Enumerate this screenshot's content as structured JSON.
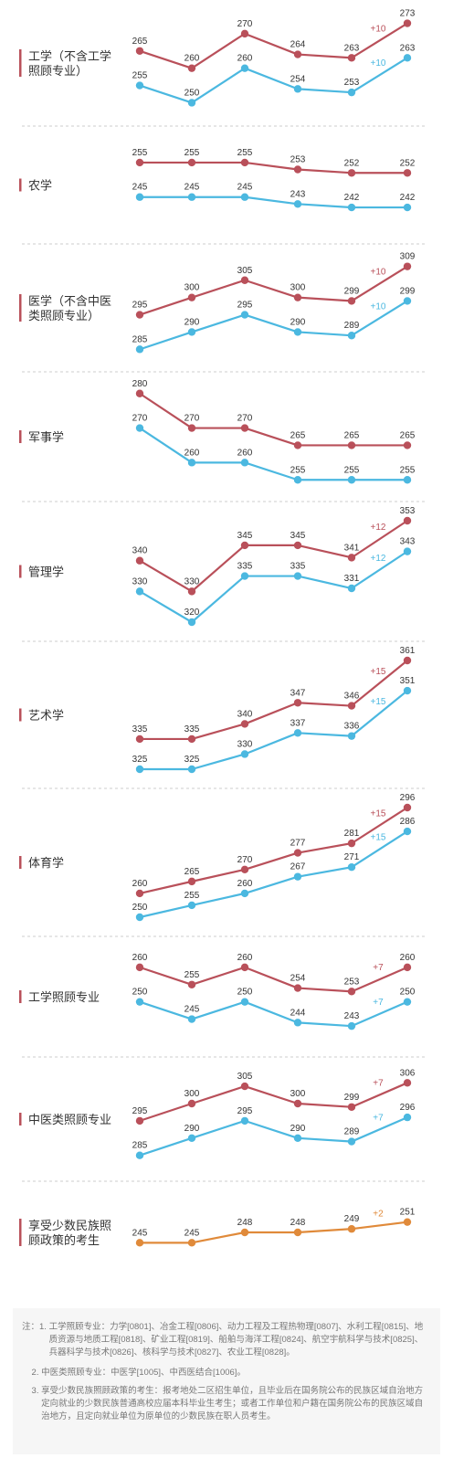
{
  "colors": {
    "red": "#b9505a",
    "blue": "#4bb8e0",
    "orange": "#e08a3a",
    "divider": "#cccccc",
    "label_bar": "#b9505a"
  },
  "x_years": [
    "",
    "",
    "",
    "",
    "",
    ""
  ],
  "chart_data": [
    {
      "type": "line",
      "label": "工学（不含工学\n照顾专业）",
      "series": [
        {
          "values": [
            265,
            260,
            270,
            264,
            263,
            273
          ],
          "color": "red"
        },
        {
          "values": [
            255,
            250,
            260,
            254,
            253,
            263
          ],
          "color": "blue"
        }
      ],
      "deltas": [
        "+10",
        "+10"
      ]
    },
    {
      "type": "line",
      "label": "农学",
      "series": [
        {
          "values": [
            255,
            255,
            255,
            253,
            252,
            252
          ],
          "color": "red"
        },
        {
          "values": [
            245,
            245,
            245,
            243,
            242,
            242
          ],
          "color": "blue"
        }
      ],
      "deltas": [
        "",
        ""
      ]
    },
    {
      "type": "line",
      "label": "医学（不含中医\n类照顾专业）",
      "series": [
        {
          "values": [
            295,
            300,
            305,
            300,
            299,
            309
          ],
          "color": "red"
        },
        {
          "values": [
            285,
            290,
            295,
            290,
            289,
            299
          ],
          "color": "blue"
        }
      ],
      "deltas": [
        "+10",
        "+10"
      ]
    },
    {
      "type": "line",
      "label": "军事学",
      "series": [
        {
          "values": [
            280,
            270,
            270,
            265,
            265,
            265
          ],
          "color": "red"
        },
        {
          "values": [
            270,
            260,
            260,
            255,
            255,
            255
          ],
          "color": "blue"
        }
      ],
      "deltas": [
        "",
        ""
      ]
    },
    {
      "type": "line",
      "label": "管理学",
      "series": [
        {
          "values": [
            340,
            330,
            345,
            345,
            341,
            353
          ],
          "color": "red"
        },
        {
          "values": [
            330,
            320,
            335,
            335,
            331,
            343
          ],
          "color": "blue"
        }
      ],
      "deltas": [
        "+12",
        "+12"
      ]
    },
    {
      "type": "line",
      "label": "艺术学",
      "series": [
        {
          "values": [
            335,
            335,
            340,
            347,
            346,
            361
          ],
          "color": "red"
        },
        {
          "values": [
            325,
            325,
            330,
            337,
            336,
            351
          ],
          "color": "blue"
        }
      ],
      "deltas": [
        "+15",
        "+15"
      ]
    },
    {
      "type": "line",
      "label": "体育学",
      "series": [
        {
          "values": [
            260,
            265,
            270,
            277,
            281,
            296
          ],
          "color": "red"
        },
        {
          "values": [
            250,
            255,
            260,
            267,
            271,
            286
          ],
          "color": "blue"
        }
      ],
      "deltas": [
        "+15",
        "+15"
      ]
    },
    {
      "type": "line",
      "label": "工学照顾专业",
      "series": [
        {
          "values": [
            260,
            255,
            260,
            254,
            253,
            260
          ],
          "color": "red"
        },
        {
          "values": [
            250,
            245,
            250,
            244,
            243,
            250
          ],
          "color": "blue"
        }
      ],
      "deltas": [
        "+7",
        "+7"
      ]
    },
    {
      "type": "line",
      "label": "中医类照顾专业",
      "series": [
        {
          "values": [
            295,
            300,
            305,
            300,
            299,
            306
          ],
          "color": "red"
        },
        {
          "values": [
            285,
            290,
            295,
            290,
            289,
            296
          ],
          "color": "blue"
        }
      ],
      "deltas": [
        "+7",
        "+7"
      ]
    },
    {
      "type": "line",
      "label": "享受少数民族照\n顾政策的考生",
      "series": [
        {
          "values": [
            245,
            245,
            248,
            248,
            249,
            251
          ],
          "color": "orange"
        }
      ],
      "deltas": [
        "+2"
      ]
    }
  ],
  "notes": [
    {
      "prefix": "注：1. ",
      "text": "工学照顾专业：力学[0801]、冶金工程[0806]、动力工程及工程热物理[0807]、水利工程[0815]、地质资源与地质工程[0818]、矿业工程[0819]、船舶与海洋工程[0824]、航空宇航科学与技术[0825]、兵器科学与技术[0826]、核科学与技术[0827]、农业工程[0828]。"
    },
    {
      "prefix": "    2. ",
      "text": "中医类照顾专业：中医学[1005]、中西医结合[1006]。"
    },
    {
      "prefix": "    3. ",
      "text": "享受少数民族照顾政策的考生：报考地处二区招生单位，且毕业后在国务院公布的民族区域自治地方定向就业的少数民族普通高校应届本科毕业生考生；或者工作单位和户籍在国务院公布的民族区域自治地方，且定向就业单位为原单位的少数民族在职人员考生。"
    }
  ]
}
